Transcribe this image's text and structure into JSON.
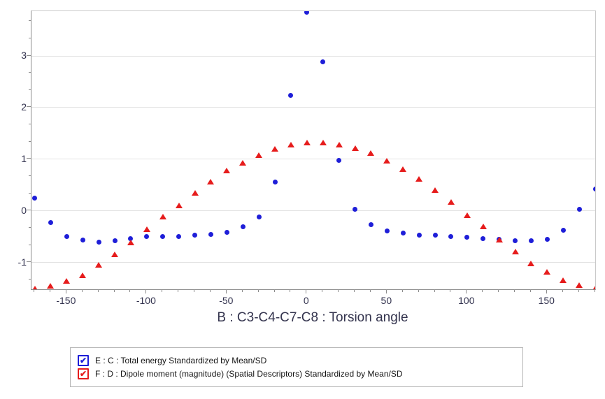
{
  "chart_data": {
    "type": "scatter",
    "title": "",
    "xlabel": "B : C3-C4-C7-C8 : Torsion angle",
    "ylabel": "",
    "xlim": [
      -172,
      180
    ],
    "ylim": [
      -1.514,
      3.865
    ],
    "x_major_ticks": [
      -150,
      -100,
      -50,
      0,
      50,
      100,
      150
    ],
    "x_minor_step": 10,
    "y_major_ticks": [
      -1,
      0,
      1,
      2,
      3
    ],
    "y_minor_divisions": 3,
    "grid": "horizontal-only",
    "legend_position": "bottom-left",
    "x": [
      -170,
      -160,
      -150,
      -140,
      -130,
      -120,
      -110,
      -100,
      -90,
      -80,
      -70,
      -60,
      -50,
      -40,
      -30,
      -20,
      -10,
      0,
      10,
      20,
      30,
      40,
      50,
      60,
      70,
      80,
      90,
      100,
      110,
      120,
      130,
      140,
      150,
      160,
      170,
      180
    ],
    "series": [
      {
        "name": "E : C : Total energy Standardized by Mean/SD",
        "marker": "circle",
        "color": "#1e1ed8",
        "values": [
          0.25,
          -0.23,
          -0.5,
          -0.56,
          -0.6,
          -0.57,
          -0.53,
          -0.5,
          -0.49,
          -0.5,
          -0.47,
          -0.45,
          -0.41,
          -0.31,
          -0.12,
          0.56,
          2.24,
          3.85,
          2.89,
          0.98,
          0.04,
          -0.27,
          -0.38,
          -0.43,
          -0.47,
          -0.47,
          -0.5,
          -0.51,
          -0.54,
          -0.55,
          -0.57,
          -0.57,
          -0.55,
          -0.37,
          0.04,
          0.42
        ]
      },
      {
        "name": "F : D : Dipole moment (magnitude) (Spatial Descriptors) Standardized by Mean/SD",
        "marker": "triangle",
        "color": "#e61c1c",
        "values": [
          -1.5,
          -1.45,
          -1.35,
          -1.24,
          -1.04,
          -0.84,
          -0.61,
          -0.35,
          -0.11,
          0.11,
          0.35,
          0.57,
          0.78,
          0.93,
          1.08,
          1.2,
          1.28,
          1.33,
          1.33,
          1.29,
          1.22,
          1.12,
          0.97,
          0.81,
          0.62,
          0.41,
          0.17,
          -0.08,
          -0.3,
          -0.55,
          -0.78,
          -1.01,
          -1.18,
          -1.34,
          -1.43,
          -1.5
        ]
      }
    ]
  },
  "legend": {
    "checkmark": "✔",
    "items": [
      {
        "checked": true
      },
      {
        "checked": true
      }
    ]
  }
}
